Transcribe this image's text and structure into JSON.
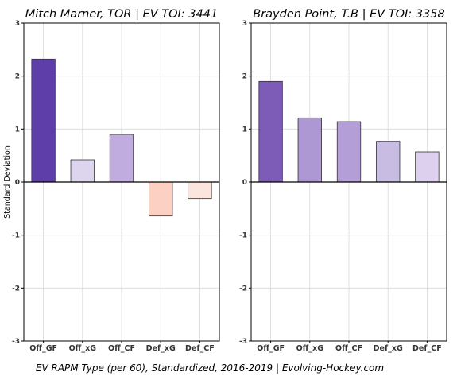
{
  "chart_data": [
    {
      "type": "bar",
      "title": "Mitch Marner, TOR  |  EV TOI: 3441",
      "ylabel": "Standard Deviation",
      "ylim": [
        -3,
        3
      ],
      "yticks": [
        3,
        2,
        1,
        0,
        -1,
        -2,
        -3
      ],
      "grid": true,
      "categories": [
        "Off_GF",
        "Off_xG",
        "Off_CF",
        "Def_xG",
        "Def_CF"
      ],
      "values": [
        2.32,
        0.42,
        0.9,
        -0.64,
        -0.31
      ],
      "colors": [
        "#5e3ea8",
        "#ddd4ee",
        "#c0acde",
        "#fdd0c4",
        "#fde5de"
      ]
    },
    {
      "type": "bar",
      "title": "Brayden Point, T.B  |  EV TOI: 3358",
      "ylabel": "",
      "ylim": [
        -3,
        3
      ],
      "yticks": [
        3,
        2,
        1,
        0,
        -1,
        -2,
        -3
      ],
      "grid": true,
      "categories": [
        "Off_GF",
        "Off_xG",
        "Off_CF",
        "Def_xG",
        "Def_CF"
      ],
      "values": [
        1.9,
        1.21,
        1.14,
        0.77,
        0.57
      ],
      "colors": [
        "#7d5cb7",
        "#ad98d4",
        "#b39ed7",
        "#c9bce2",
        "#dcd0ee"
      ]
    }
  ],
  "caption": "EV RAPM Type (per 60), Standardized, 2016-2019    |    Evolving-Hockey.com"
}
